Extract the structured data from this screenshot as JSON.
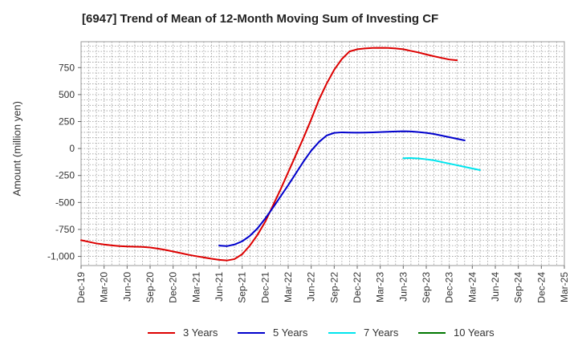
{
  "chart_data": {
    "type": "line",
    "title": "[6947]  Trend of Mean of 12-Month Moving Sum of Investing CF",
    "xlabel": "",
    "ylabel": "Amount (million yen)",
    "ylim": [
      -1085,
      990
    ],
    "yticks": [
      750,
      500,
      250,
      0,
      -250,
      -500,
      -750,
      -1000
    ],
    "ytick_labels": [
      "750",
      "500",
      "250",
      "0",
      "-250",
      "-500",
      "-750",
      "-1,000"
    ],
    "x_categories": [
      "Dec-19",
      "Mar-20",
      "Jun-20",
      "Sep-20",
      "Dec-20",
      "Mar-21",
      "Jun-21",
      "Sep-21",
      "Dec-21",
      "Mar-22",
      "Jun-22",
      "Sep-22",
      "Dec-22",
      "Mar-23",
      "Jun-23",
      "Sep-23",
      "Dec-23",
      "Mar-24",
      "Jun-24",
      "Sep-24",
      "Dec-24",
      "Mar-25"
    ],
    "grid": true,
    "legend_position": "bottom",
    "series": [
      {
        "name": "3 Years",
        "color": "#dd0000",
        "start_index": 0,
        "values": [
          -850,
          -865,
          -880,
          -890,
          -898,
          -905,
          -908,
          -910,
          -912,
          -918,
          -928,
          -940,
          -955,
          -970,
          -985,
          -998,
          -1010,
          -1022,
          -1032,
          -1038,
          -1025,
          -980,
          -900,
          -800,
          -680,
          -530,
          -380,
          -220,
          -60,
          100,
          270,
          450,
          600,
          730,
          830,
          900,
          920,
          928,
          932,
          933,
          932,
          928,
          920,
          905,
          890,
          872,
          855,
          840,
          825,
          818
        ]
      },
      {
        "name": "5 Years",
        "color": "#0000cc",
        "start_index": 18,
        "values": [
          -900,
          -905,
          -890,
          -860,
          -810,
          -740,
          -650,
          -550,
          -445,
          -340,
          -230,
          -120,
          -20,
          60,
          120,
          145,
          150,
          148,
          147,
          148,
          150,
          152,
          155,
          158,
          160,
          158,
          152,
          145,
          135,
          120,
          105,
          90,
          75
        ]
      },
      {
        "name": "7 Years",
        "color": "#00e5ee",
        "start_index": 42,
        "values": [
          -90,
          -88,
          -92,
          -100,
          -110,
          -125,
          -140,
          -155,
          -170,
          -185,
          -200
        ]
      },
      {
        "name": "10 Years",
        "color": "#007700",
        "start_index": 0,
        "values": []
      }
    ]
  }
}
